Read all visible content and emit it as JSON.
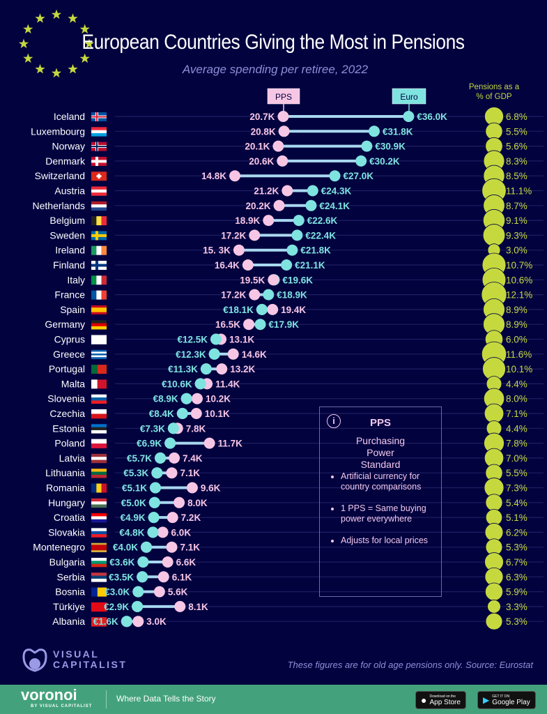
{
  "title": "European Countries Giving the Most in Pensions",
  "subtitle": "Average spending per retiree, 2022",
  "colors": {
    "background": "#02023f",
    "pps": "#f7c6e4",
    "euro": "#7fe3e0",
    "gdp": "#c5d93f",
    "footer": "#43a27c"
  },
  "chart_data": {
    "type": "dumbbell",
    "legend": {
      "pps_label": "PPS",
      "euro_label": "Euro",
      "gdp_label_line1": "Pensions as a",
      "gdp_label_line2": "% of GDP"
    },
    "series": [
      {
        "name": "PPS",
        "unit": "thousand PPS"
      },
      {
        "name": "Euro",
        "unit": "thousand €"
      },
      {
        "name": "Pensions as a % of GDP",
        "unit": "%"
      }
    ],
    "rows": [
      {
        "country": "Iceland",
        "pps": 20.7,
        "pps_label": "20.7K",
        "euro": 36.0,
        "euro_label": "€36.0K",
        "gdp": 6.8,
        "gdp_label": "6.8%",
        "flag": {
          "type": "cross",
          "colors": [
            "#02529c",
            "#fff",
            "#dc1e35"
          ]
        }
      },
      {
        "country": "Luxembourg",
        "pps": 20.8,
        "pps_label": "20.8K",
        "euro": 31.8,
        "euro_label": "€31.8K",
        "gdp": 5.5,
        "gdp_label": "5.5%",
        "flag": {
          "type": "h",
          "colors": [
            "#ed2939",
            "#fff",
            "#00a1de"
          ]
        }
      },
      {
        "country": "Norway",
        "pps": 20.1,
        "pps_label": "20.1K",
        "euro": 30.9,
        "euro_label": "€30.9K",
        "gdp": 5.6,
        "gdp_label": "5.6%",
        "flag": {
          "type": "cross",
          "colors": [
            "#ba0c2f",
            "#fff",
            "#00205b"
          ]
        }
      },
      {
        "country": "Denmark",
        "pps": 20.6,
        "pps_label": "20.6K",
        "euro": 30.2,
        "euro_label": "€30.2K",
        "gdp": 8.3,
        "gdp_label": "8.3%",
        "flag": {
          "type": "cross",
          "colors": [
            "#c8102e",
            "#fff",
            "#fff"
          ]
        }
      },
      {
        "country": "Switzerland",
        "pps": 14.8,
        "pps_label": "14.8K",
        "euro": 27.0,
        "euro_label": "€27.0K",
        "gdp": 8.5,
        "gdp_label": "8.5%",
        "flag": {
          "type": "plus",
          "colors": [
            "#da291c",
            "#fff"
          ]
        }
      },
      {
        "country": "Austria",
        "pps": 21.2,
        "pps_label": "21.2K",
        "euro": 24.3,
        "euro_label": "€24.3K",
        "gdp": 11.1,
        "gdp_label": "11.1%",
        "flag": {
          "type": "h",
          "colors": [
            "#ed2939",
            "#fff",
            "#ed2939"
          ]
        }
      },
      {
        "country": "Netherlands",
        "pps": 20.2,
        "pps_label": "20.2K",
        "euro": 24.1,
        "euro_label": "€24.1K",
        "gdp": 8.7,
        "gdp_label": "8.7%",
        "flag": {
          "type": "h",
          "colors": [
            "#ae1c28",
            "#fff",
            "#21468b"
          ]
        }
      },
      {
        "country": "Belgium",
        "pps": 18.9,
        "pps_label": "18.9K",
        "euro": 22.6,
        "euro_label": "€22.6K",
        "gdp": 9.1,
        "gdp_label": "9.1%",
        "flag": {
          "type": "v",
          "colors": [
            "#222",
            "#fae042",
            "#ed2939"
          ]
        }
      },
      {
        "country": "Sweden",
        "pps": 17.2,
        "pps_label": "17.2K",
        "euro": 22.4,
        "euro_label": "€22.4K",
        "gdp": 9.3,
        "gdp_label": "9.3%",
        "flag": {
          "type": "cross",
          "colors": [
            "#006aa7",
            "#fecc00",
            "#fecc00"
          ]
        }
      },
      {
        "country": "Ireland",
        "pps": 15.3,
        "pps_label": "15. 3K",
        "euro": 21.8,
        "euro_label": "€21.8K",
        "gdp": 3.0,
        "gdp_label": "3.0%",
        "flag": {
          "type": "v",
          "colors": [
            "#169b62",
            "#fff",
            "#ff883e"
          ]
        }
      },
      {
        "country": "Finland",
        "pps": 16.4,
        "pps_label": "16.4K",
        "euro": 21.1,
        "euro_label": "€21.1K",
        "gdp": 10.7,
        "gdp_label": "10.7%",
        "flag": {
          "type": "cross",
          "colors": [
            "#fff",
            "#003580",
            "#003580"
          ]
        }
      },
      {
        "country": "Italy",
        "pps": 19.5,
        "pps_label": "19.5K",
        "euro": 19.6,
        "euro_label": "€19.6K",
        "gdp": 10.6,
        "gdp_label": "10.6%",
        "flag": {
          "type": "v",
          "colors": [
            "#009246",
            "#fff",
            "#ce2b37"
          ]
        }
      },
      {
        "country": "France",
        "pps": 17.2,
        "pps_label": "17.2K",
        "euro": 18.9,
        "euro_label": "€18.9K",
        "gdp": 12.1,
        "gdp_label": "12.1%",
        "flag": {
          "type": "v",
          "colors": [
            "#0055a4",
            "#fff",
            "#ef4135"
          ]
        }
      },
      {
        "country": "Spain",
        "pps": 19.4,
        "pps_label": "19.4K",
        "euro": 18.1,
        "euro_label": "€18.1K",
        "gdp": 8.9,
        "gdp_label": "8.9%",
        "flag": {
          "type": "h3",
          "colors": [
            "#c60b1e",
            "#ffc400",
            "#c60b1e"
          ]
        }
      },
      {
        "country": "Germany",
        "pps": 16.5,
        "pps_label": "16.5K",
        "euro": 17.9,
        "euro_label": "€17.9K",
        "gdp": 8.9,
        "gdp_label": "8.9%",
        "flag": {
          "type": "h",
          "colors": [
            "#222",
            "#dd0000",
            "#ffce00"
          ]
        }
      },
      {
        "country": "Cyprus",
        "pps": 13.1,
        "pps_label": "13.1K",
        "euro": 12.5,
        "euro_label": "€12.5K",
        "gdp": 6.0,
        "gdp_label": "6.0%",
        "flag": {
          "type": "h",
          "colors": [
            "#fff",
            "#fff",
            "#fff"
          ]
        }
      },
      {
        "country": "Greece",
        "pps": 14.6,
        "pps_label": "14.6K",
        "euro": 12.3,
        "euro_label": "€12.3K",
        "gdp": 11.6,
        "gdp_label": "11.6%",
        "flag": {
          "type": "h",
          "colors": [
            "#0d5eaf",
            "#fff",
            "#0d5eaf",
            "#fff",
            "#0d5eaf"
          ]
        }
      },
      {
        "country": "Portugal",
        "pps": 13.2,
        "pps_label": "13.2K",
        "euro": 11.3,
        "euro_label": "€11.3K",
        "gdp": 10.1,
        "gdp_label": "10.1%",
        "flag": {
          "type": "v2",
          "colors": [
            "#046a38",
            "#da291c"
          ]
        }
      },
      {
        "country": "Malta",
        "pps": 11.4,
        "pps_label": "11.4K",
        "euro": 10.6,
        "euro_label": "€10.6K",
        "gdp": 4.4,
        "gdp_label": "4.4%",
        "flag": {
          "type": "v2",
          "colors": [
            "#fff",
            "#cf142b"
          ]
        }
      },
      {
        "country": "Slovenia",
        "pps": 10.2,
        "pps_label": "10.2K",
        "euro": 8.9,
        "euro_label": "€8.9K",
        "gdp": 8.0,
        "gdp_label": "8.0%",
        "flag": {
          "type": "h",
          "colors": [
            "#fff",
            "#005da4",
            "#ed1c24"
          ]
        }
      },
      {
        "country": "Czechia",
        "pps": 10.1,
        "pps_label": "10.1K",
        "euro": 8.4,
        "euro_label": "€8.4K",
        "gdp": 7.1,
        "gdp_label": "7.1%",
        "flag": {
          "type": "h",
          "colors": [
            "#fff",
            "#d7141a"
          ]
        }
      },
      {
        "country": "Estonia",
        "pps": 7.8,
        "pps_label": "7.8K",
        "euro": 7.3,
        "euro_label": "€7.3K",
        "gdp": 4.4,
        "gdp_label": "4.4%",
        "flag": {
          "type": "h",
          "colors": [
            "#0072ce",
            "#222",
            "#fff"
          ]
        }
      },
      {
        "country": "Poland",
        "pps": 11.7,
        "pps_label": "11.7K",
        "euro": 6.9,
        "euro_label": "€6.9K",
        "gdp": 7.8,
        "gdp_label": "7.8%",
        "flag": {
          "type": "h",
          "colors": [
            "#fff",
            "#dc143c"
          ]
        }
      },
      {
        "country": "Latvia",
        "pps": 7.4,
        "pps_label": "7.4K",
        "euro": 5.7,
        "euro_label": "€5.7K",
        "gdp": 7.0,
        "gdp_label": "7.0%",
        "flag": {
          "type": "h",
          "colors": [
            "#9e3039",
            "#fff",
            "#9e3039"
          ]
        }
      },
      {
        "country": "Lithuania",
        "pps": 7.1,
        "pps_label": "7.1K",
        "euro": 5.3,
        "euro_label": "€5.3K",
        "gdp": 5.5,
        "gdp_label": "5.5%",
        "flag": {
          "type": "h",
          "colors": [
            "#fdb913",
            "#006a44",
            "#c1272d"
          ]
        }
      },
      {
        "country": "Romania",
        "pps": 9.6,
        "pps_label": "9.6K",
        "euro": 5.1,
        "euro_label": "€5.1K",
        "gdp": 7.3,
        "gdp_label": "7.3%",
        "flag": {
          "type": "v",
          "colors": [
            "#002b7f",
            "#fcd116",
            "#ce1126"
          ]
        }
      },
      {
        "country": "Hungary",
        "pps": 8.0,
        "pps_label": "8.0K",
        "euro": 5.0,
        "euro_label": "€5.0K",
        "gdp": 5.4,
        "gdp_label": "5.4%",
        "flag": {
          "type": "h",
          "colors": [
            "#ce2939",
            "#fff",
            "#477050"
          ]
        }
      },
      {
        "country": "Croatia",
        "pps": 7.2,
        "pps_label": "7.2K",
        "euro": 4.9,
        "euro_label": "€4.9K",
        "gdp": 5.1,
        "gdp_label": "5.1%",
        "flag": {
          "type": "h",
          "colors": [
            "#ff0000",
            "#fff",
            "#171796"
          ]
        }
      },
      {
        "country": "Slovakia",
        "pps": 6.0,
        "pps_label": "6.0K",
        "euro": 4.8,
        "euro_label": "€4.8K",
        "gdp": 6.2,
        "gdp_label": "6.2%",
        "flag": {
          "type": "h",
          "colors": [
            "#fff",
            "#0b4ea2",
            "#ee1c25"
          ]
        }
      },
      {
        "country": "Montenegro",
        "pps": 7.1,
        "pps_label": "7.1K",
        "euro": 4.0,
        "euro_label": "€4.0K",
        "gdp": 5.3,
        "gdp_label": "5.3%",
        "flag": {
          "type": "h",
          "colors": [
            "#d3ae3b",
            "#c40308",
            "#c40308",
            "#c40308",
            "#d3ae3b"
          ]
        }
      },
      {
        "country": "Bulgaria",
        "pps": 6.6,
        "pps_label": "6.6K",
        "euro": 3.6,
        "euro_label": "€3.6K",
        "gdp": 6.7,
        "gdp_label": "6.7%",
        "flag": {
          "type": "h",
          "colors": [
            "#fff",
            "#00966e",
            "#d62612"
          ]
        }
      },
      {
        "country": "Serbia",
        "pps": 6.1,
        "pps_label": "6.1K",
        "euro": 3.5,
        "euro_label": "€3.5K",
        "gdp": 6.3,
        "gdp_label": "6.3%",
        "flag": {
          "type": "h",
          "colors": [
            "#c6363c",
            "#0c4076",
            "#fff"
          ]
        }
      },
      {
        "country": "Bosnia",
        "pps": 5.6,
        "pps_label": "5.6K",
        "euro": 3.0,
        "euro_label": "€3.0K",
        "gdp": 5.9,
        "gdp_label": "5.9%",
        "flag": {
          "type": "v2",
          "colors": [
            "#002395",
            "#fecb00"
          ]
        }
      },
      {
        "country": "Türkiye",
        "pps": 8.1,
        "pps_label": "8.1K",
        "euro": 2.9,
        "euro_label": "€2.9K",
        "gdp": 3.3,
        "gdp_label": "3.3%",
        "flag": {
          "type": "h",
          "colors": [
            "#e30a17"
          ]
        }
      },
      {
        "country": "Albania",
        "pps": 3.0,
        "pps_label": "3.0K",
        "euro": 1.6,
        "euro_label": "€1.6K",
        "gdp": 5.3,
        "gdp_label": "5.3%",
        "flag": {
          "type": "h",
          "colors": [
            "#e41e20"
          ]
        }
      }
    ]
  },
  "info_box": {
    "icon": "info-icon",
    "heading": "PPS",
    "subheading": "Purchasing Power Standard",
    "bullets": [
      "Artificial currency for country comparisons",
      "1 PPS = Same buying power everywhere",
      "Adjusts for local prices"
    ]
  },
  "brand": {
    "logo_text_1": "VISUAL",
    "logo_text_2": "CAPITALIST"
  },
  "source": "These figures are for old age pensions only. Source: Eurostat",
  "footer": {
    "logo": "voronoi",
    "logo_sub": "BY VISUAL CAPITALIST",
    "tagline": "Where Data Tells the Story",
    "app_store_small": "Download on the",
    "app_store": "App Store",
    "google_small": "GET IT ON",
    "google": "Google Play"
  }
}
